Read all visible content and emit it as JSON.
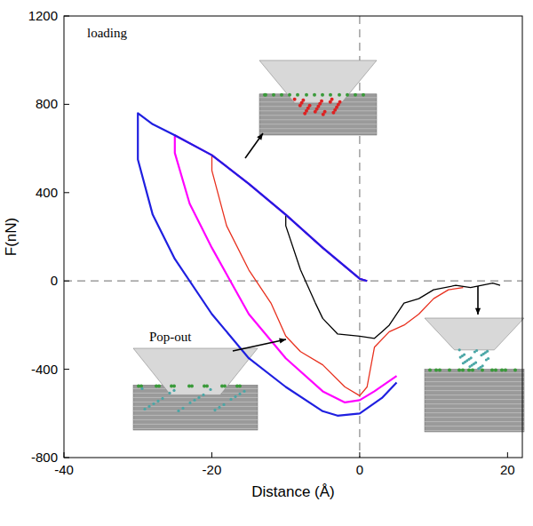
{
  "chart_data": {
    "type": "line",
    "annotations": [
      "loading",
      "Pop-out"
    ],
    "x_label": "Distance (Å)",
    "y_label": "F(nN)",
    "xlim": [
      -40,
      22
    ],
    "ylim": [
      -800,
      1200
    ],
    "xticks": [
      -40,
      -20,
      0,
      20
    ],
    "yticks": [
      -800,
      -400,
      0,
      400,
      800,
      1200
    ],
    "hlines": [
      0
    ],
    "vlines": [
      0
    ],
    "grid": false,
    "series": [
      {
        "color": "#000000",
        "x": [
          1,
          0,
          -5,
          -10,
          -10,
          -8,
          -6,
          -5,
          -3,
          0,
          2,
          3,
          4,
          6,
          8,
          10,
          13,
          15,
          18,
          19
        ],
        "values": [
          0,
          10,
          150,
          300,
          250,
          50,
          -100,
          -170,
          -240,
          -250,
          -260,
          -230,
          -200,
          -100,
          -80,
          -40,
          -20,
          -30,
          -10,
          -20
        ]
      },
      {
        "color": "#e8301e",
        "x": [
          1,
          0,
          -5,
          -10,
          -15,
          -20,
          -20,
          -18,
          -15,
          -12,
          -10,
          -8,
          -5,
          -2,
          0,
          1,
          2,
          4,
          6,
          8,
          10,
          12,
          14
        ],
        "values": [
          0,
          10,
          150,
          300,
          440,
          570,
          500,
          250,
          50,
          -100,
          -250,
          -320,
          -380,
          -480,
          -520,
          -480,
          -300,
          -230,
          -200,
          -150,
          -80,
          -40,
          -30
        ]
      },
      {
        "color": "#ff00ff",
        "x": [
          1,
          0,
          -5,
          -10,
          -15,
          -20,
          -25,
          -25,
          -23,
          -20,
          -15,
          -10,
          -5,
          -2,
          0,
          2,
          5
        ],
        "values": [
          0,
          10,
          150,
          300,
          440,
          570,
          660,
          580,
          350,
          150,
          -150,
          -350,
          -500,
          -550,
          -540,
          -500,
          -430
        ]
      },
      {
        "color": "#1f1fe0",
        "x": [
          1,
          0,
          -5,
          -10,
          -15,
          -20,
          -25,
          -28,
          -30,
          -30,
          -28,
          -25,
          -20,
          -15,
          -10,
          -5,
          -3,
          0,
          3,
          5
        ],
        "values": [
          0,
          10,
          150,
          300,
          440,
          570,
          660,
          710,
          760,
          550,
          300,
          100,
          -150,
          -350,
          -480,
          -590,
          -610,
          -600,
          -530,
          -460
        ]
      }
    ]
  }
}
